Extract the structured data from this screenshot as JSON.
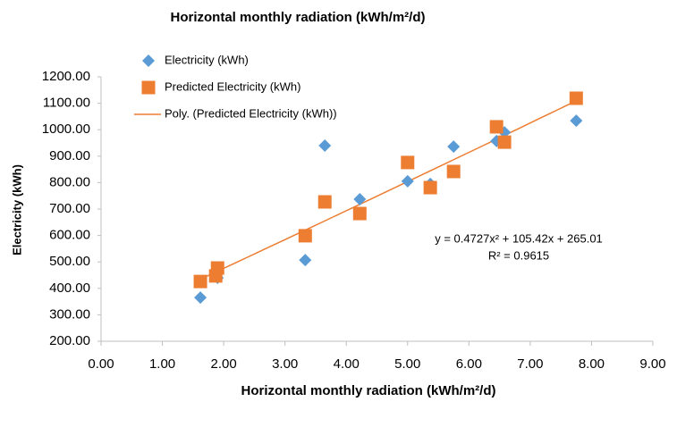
{
  "chart_data": {
    "type": "scatter",
    "title": "Horizontal monthly radiation (kWh/m²/d)",
    "x_label": "Horizontal monthly radiation  (kWh/m²/d)",
    "y_label": "Electricity (kWh)",
    "series": [
      {
        "name": "Electricity (kWh)",
        "color": "#5b9bd5",
        "marker": "diamond",
        "x": [
          1.62,
          1.9,
          3.33,
          3.65,
          4.22,
          5.0,
          5.37,
          5.75,
          6.45,
          6.58,
          7.75
        ],
        "values": [
          365,
          440,
          507,
          940,
          737,
          805,
          795,
          936,
          957,
          990,
          1034
        ]
      },
      {
        "name": "Predicted Electricity (kWh)",
        "color": "#ed7d31",
        "marker": "square",
        "x": [
          1.62,
          1.87,
          1.9,
          3.33,
          3.65,
          4.22,
          5.0,
          5.37,
          5.75,
          6.45,
          6.58,
          7.75
        ],
        "values": [
          426,
          447,
          477,
          599,
          727,
          683,
          876,
          781,
          842,
          1011,
          953,
          1119
        ]
      }
    ],
    "trendline": {
      "name": "Poly. (Predicted Electricity (kWh))",
      "color": "#ed7d31",
      "equation": "y = 0.4727x² + 105.42x + 265.01",
      "r2": "R² = 0.9615"
    },
    "xlim": [
      0,
      9
    ],
    "xticks": [
      {
        "value": 0,
        "label": "0.00"
      },
      {
        "value": 1,
        "label": "1.00"
      },
      {
        "value": 2,
        "label": "2.00"
      },
      {
        "value": 3,
        "label": "3.00"
      },
      {
        "value": 4,
        "label": "4.00"
      },
      {
        "value": 5,
        "label": "5.00"
      },
      {
        "value": 6,
        "label": "6.00"
      },
      {
        "value": 7,
        "label": "7.00"
      },
      {
        "value": 8,
        "label": "8.00"
      },
      {
        "value": 9,
        "label": "9.00"
      }
    ],
    "ylim": [
      200,
      1200
    ],
    "yticks": [
      {
        "value": 200,
        "label": "200.00"
      },
      {
        "value": 300,
        "label": "300.00"
      },
      {
        "value": 400,
        "label": "400.00"
      },
      {
        "value": 500,
        "label": "500.00"
      },
      {
        "value": 600,
        "label": "600.00"
      },
      {
        "value": 700,
        "label": "700.00"
      },
      {
        "value": 800,
        "label": "800.00"
      },
      {
        "value": 900,
        "label": "900.00"
      },
      {
        "value": 1000,
        "label": "1000.00"
      },
      {
        "value": 1100,
        "label": "1100.00"
      },
      {
        "value": 1200,
        "label": "1200.00"
      }
    ],
    "legend": "top-left",
    "grid": false
  }
}
